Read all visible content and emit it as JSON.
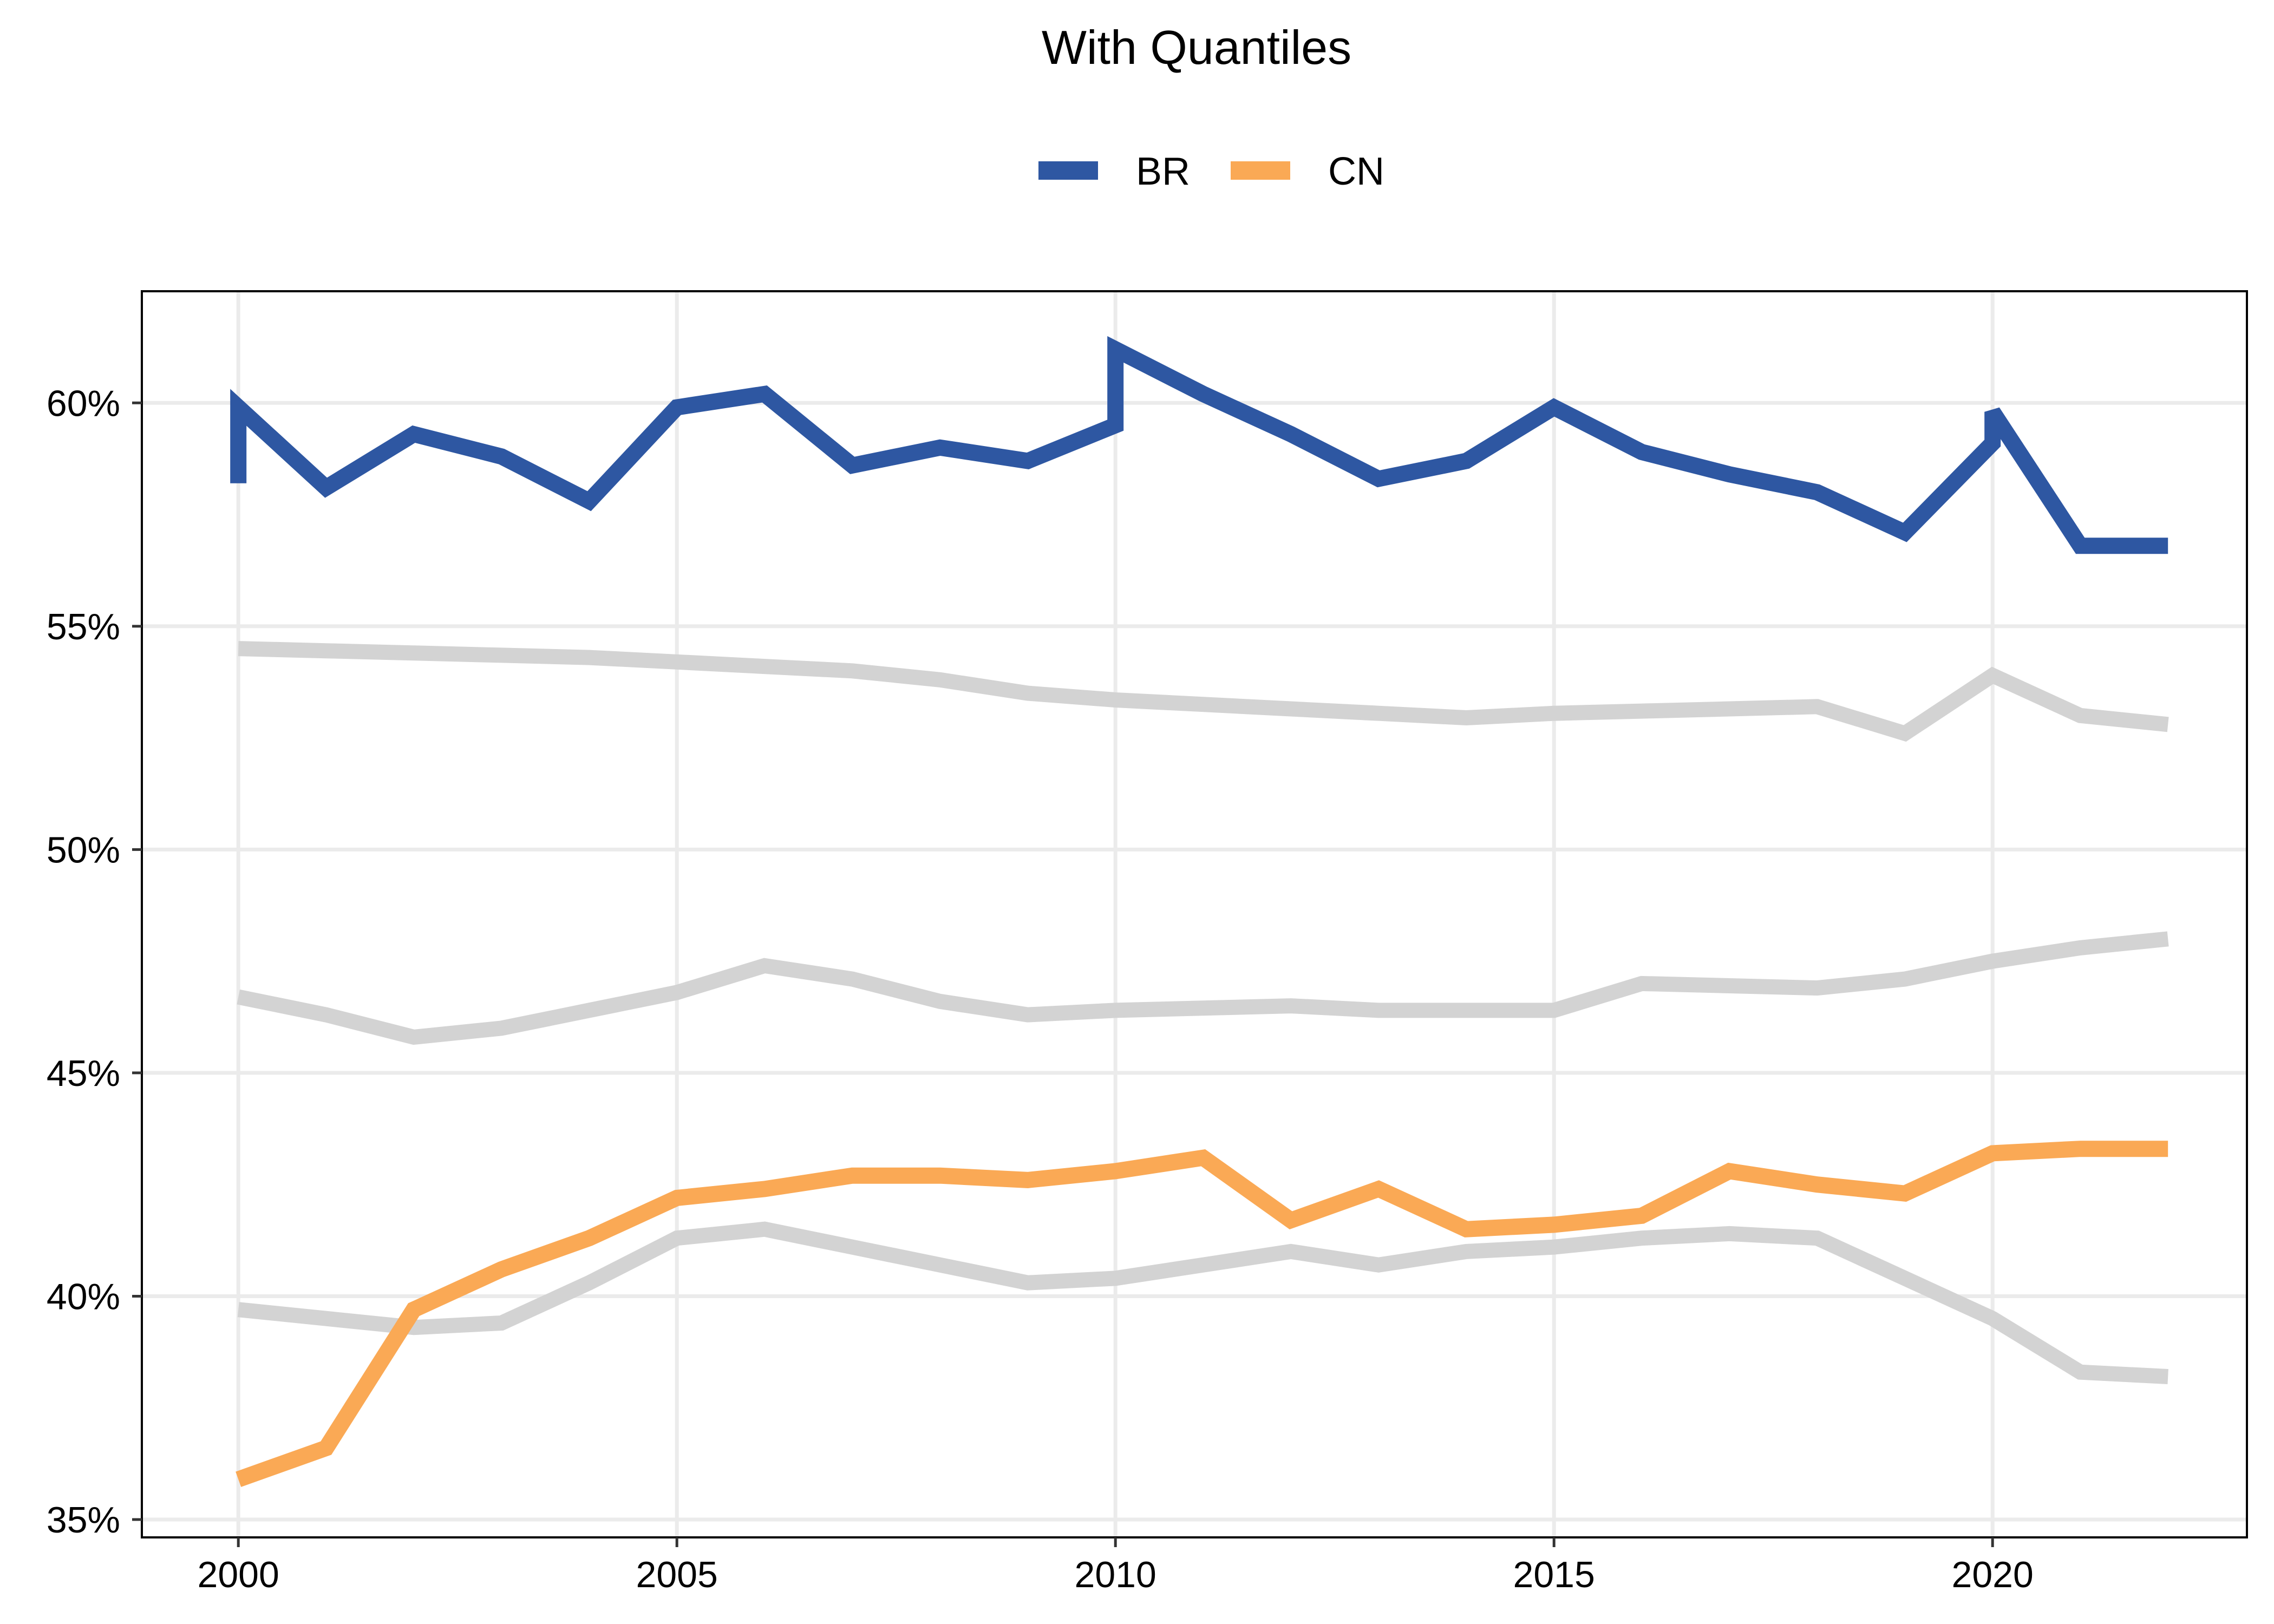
{
  "chart_data": {
    "type": "line",
    "title": "With Quantiles",
    "xlabel": "",
    "ylabel": "",
    "x": [
      2000,
      2000,
      2001,
      2002,
      2003,
      2004,
      2005,
      2006,
      2007,
      2008,
      2009,
      2010,
      2010,
      2011,
      2012,
      2013,
      2014,
      2015,
      2016,
      2017,
      2018,
      2019,
      2020,
      2020,
      2021,
      2022
    ],
    "xlim": [
      1998.9,
      2022.9
    ],
    "ylim": [
      34.6,
      62.5
    ],
    "x_ticks": [
      2000,
      2005,
      2010,
      2015,
      2020
    ],
    "x_tick_labels": [
      "2000",
      "2005",
      "2010",
      "2015",
      "2020"
    ],
    "y_ticks": [
      35,
      40,
      45,
      50,
      55,
      60
    ],
    "y_tick_labels": [
      "35%",
      "40%",
      "45%",
      "50%",
      "55%",
      "60%"
    ],
    "grid": true,
    "legend_position": "top",
    "series": [
      {
        "name": "BR",
        "color": "#2E57A2",
        "x": [
          2000,
          2000,
          2001,
          2002,
          2003,
          2004,
          2005,
          2006,
          2007,
          2008,
          2009,
          2010,
          2010,
          2011,
          2012,
          2013,
          2014,
          2015,
          2016,
          2017,
          2018,
          2019,
          2020,
          2020,
          2021,
          2022
        ],
        "values": [
          58.2,
          59.9,
          58.1,
          59.3,
          58.8,
          57.8,
          59.9,
          60.2,
          58.6,
          59.0,
          58.7,
          59.5,
          61.2,
          60.2,
          59.3,
          58.3,
          58.7,
          59.9,
          58.9,
          58.4,
          58.0,
          57.1,
          59.1,
          59.8,
          56.8,
          56.8
        ]
      },
      {
        "name": "CN",
        "color": "#FAA955",
        "x": [
          2000,
          2001,
          2002,
          2003,
          2004,
          2005,
          2006,
          2007,
          2008,
          2009,
          2010,
          2011,
          2012,
          2013,
          2014,
          2015,
          2016,
          2017,
          2018,
          2019,
          2020,
          2021,
          2022
        ],
        "values": [
          35.9,
          36.6,
          39.7,
          40.6,
          41.3,
          42.2,
          42.4,
          42.7,
          42.7,
          42.6,
          42.8,
          43.1,
          41.7,
          42.4,
          41.5,
          41.6,
          41.8,
          42.8,
          42.5,
          42.3,
          43.2,
          43.3,
          43.3
        ]
      },
      {
        "color": "#D3D3D3",
        "x": [
          2000,
          2001,
          2002,
          2003,
          2004,
          2005,
          2006,
          2007,
          2008,
          2009,
          2010,
          2011,
          2012,
          2013,
          2014,
          2015,
          2016,
          2017,
          2018,
          2019,
          2020,
          2021,
          2022
        ],
        "values": [
          54.5,
          54.45,
          54.4,
          54.35,
          54.3,
          54.2,
          54.1,
          54.0,
          53.8,
          53.5,
          53.35,
          53.25,
          53.15,
          53.05,
          52.95,
          53.05,
          53.1,
          53.15,
          53.2,
          52.6,
          53.9,
          53.0,
          52.8
        ]
      },
      {
        "color": "#D3D3D3",
        "x": [
          2000,
          2001,
          2002,
          2003,
          2004,
          2005,
          2006,
          2007,
          2008,
          2009,
          2010,
          2011,
          2012,
          2013,
          2014,
          2015,
          2016,
          2017,
          2018,
          2019,
          2020,
          2021,
          2022
        ],
        "values": [
          46.7,
          46.3,
          45.8,
          46.0,
          46.4,
          46.8,
          47.4,
          47.1,
          46.6,
          46.3,
          46.4,
          46.45,
          46.5,
          46.4,
          46.4,
          46.4,
          47.0,
          46.95,
          46.9,
          47.1,
          47.5,
          47.8,
          48.0
        ]
      },
      {
        "color": "#D3D3D3",
        "x": [
          2000,
          2001,
          2002,
          2003,
          2004,
          2005,
          2006,
          2007,
          2008,
          2009,
          2010,
          2011,
          2012,
          2013,
          2014,
          2015,
          2016,
          2017,
          2018,
          2019,
          2020,
          2021,
          2022
        ],
        "values": [
          39.7,
          39.5,
          39.3,
          39.4,
          40.3,
          41.3,
          41.5,
          41.1,
          40.7,
          40.3,
          40.4,
          40.7,
          41.0,
          40.7,
          41.0,
          41.1,
          41.3,
          41.4,
          41.3,
          40.4,
          39.5,
          38.3,
          38.2
        ]
      }
    ]
  }
}
